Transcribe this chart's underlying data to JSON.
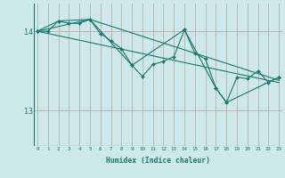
{
  "xlabel": "Humidex (Indice chaleur)",
  "bg_color": "#cce8e8",
  "grid_v_color": "#c8a8a8",
  "grid_h_color": "#c8a8a8",
  "line_color": "#1a7a6e",
  "x_ticks": [
    0,
    1,
    2,
    3,
    4,
    5,
    6,
    7,
    8,
    9,
    10,
    11,
    12,
    13,
    14,
    15,
    16,
    17,
    18,
    19,
    20,
    21,
    22,
    23
  ],
  "y_ticks": [
    13,
    14
  ],
  "ylim": [
    12.55,
    14.35
  ],
  "xlim": [
    -0.3,
    23.3
  ],
  "series1": [
    [
      0,
      14.0
    ],
    [
      1,
      14.0
    ],
    [
      2,
      14.13
    ],
    [
      3,
      14.1
    ],
    [
      4,
      14.1
    ],
    [
      5,
      14.15
    ],
    [
      6,
      13.97
    ],
    [
      7,
      13.88
    ],
    [
      8,
      13.78
    ],
    [
      9,
      13.57
    ],
    [
      10,
      13.43
    ],
    [
      11,
      13.58
    ],
    [
      12,
      13.62
    ],
    [
      13,
      13.68
    ],
    [
      14,
      14.02
    ],
    [
      15,
      13.72
    ],
    [
      16,
      13.65
    ],
    [
      17,
      13.28
    ],
    [
      18,
      13.1
    ],
    [
      19,
      13.42
    ],
    [
      20,
      13.4
    ],
    [
      21,
      13.5
    ],
    [
      22,
      13.35
    ],
    [
      23,
      13.42
    ]
  ],
  "series2": [
    [
      0,
      14.0
    ],
    [
      2,
      14.13
    ],
    [
      5,
      14.15
    ],
    [
      9,
      13.57
    ],
    [
      14,
      14.02
    ],
    [
      17,
      13.28
    ],
    [
      18,
      13.1
    ],
    [
      23,
      13.42
    ]
  ],
  "series3": [
    [
      0,
      14.0
    ],
    [
      5,
      14.15
    ],
    [
      23,
      13.38
    ]
  ],
  "series4": [
    [
      0,
      14.0
    ],
    [
      23,
      13.35
    ]
  ]
}
